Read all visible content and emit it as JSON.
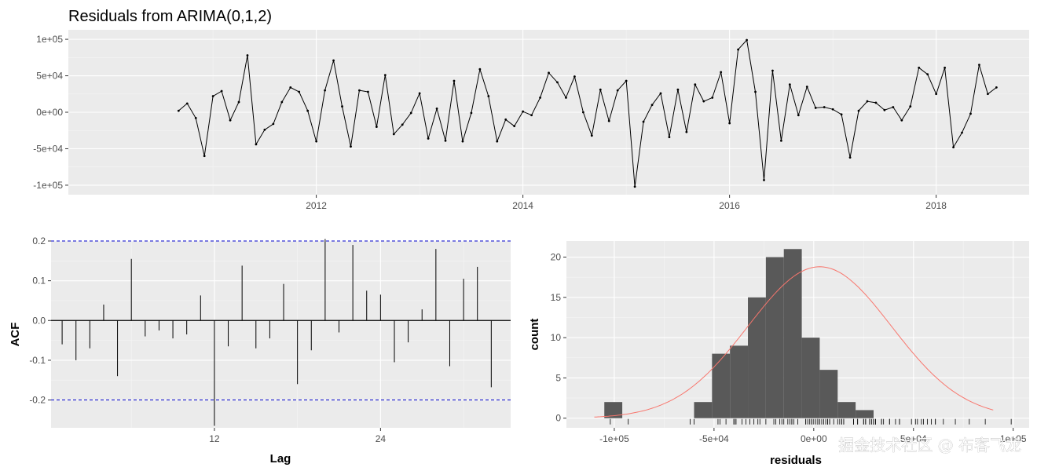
{
  "watermark": "掘金技术社区 @ 布客飞龙",
  "chart_data": [
    {
      "type": "line",
      "title": "Residuals from ARIMA(0,1,2)",
      "xlabel": "",
      "ylabel": "",
      "x_start": 2010.667,
      "x_step": 0.08333,
      "xlim": [
        2009.6,
        2018.9
      ],
      "ylim": [
        -113000,
        113000
      ],
      "x_ticks": [
        2012,
        2014,
        2016,
        2018
      ],
      "x_tick_labels": [
        "2012",
        "2014",
        "2016",
        "2018"
      ],
      "y_ticks": [
        -100000,
        -50000,
        0,
        50000,
        100000
      ],
      "y_tick_labels": [
        "-1e+05",
        "-5e+04",
        "0e+00",
        "5e+04",
        "1e+05"
      ],
      "line_color": "#000000",
      "values": [
        2000,
        12000,
        -8000,
        -60000,
        22000,
        29000,
        -11000,
        14000,
        78000,
        -44000,
        -24000,
        -16000,
        14000,
        34000,
        28000,
        2000,
        -40000,
        30000,
        71000,
        8000,
        -47000,
        30000,
        28000,
        -20000,
        51000,
        -30000,
        -17000,
        -1000,
        26000,
        -36000,
        5000,
        -39000,
        43000,
        -40000,
        -1000,
        59000,
        22000,
        -40000,
        -10000,
        -19000,
        1000,
        -4000,
        20000,
        54000,
        41000,
        20000,
        49000,
        0,
        -32000,
        31000,
        -12000,
        30000,
        43000,
        -102000,
        -13000,
        10000,
        26000,
        -34000,
        31000,
        -27000,
        38000,
        15000,
        20000,
        55000,
        -15000,
        86000,
        99000,
        28000,
        -93000,
        57000,
        -39000,
        38000,
        -4000,
        35000,
        6000,
        7000,
        4000,
        -3000,
        -62000,
        2000,
        15000,
        13000,
        3000,
        7000,
        -11000,
        8000,
        61000,
        52000,
        25000,
        61000,
        -48000,
        -28000,
        -2000,
        65000,
        25000,
        34000
      ]
    },
    {
      "type": "bar",
      "title": "",
      "xlabel": "Lag",
      "ylabel": "ACF",
      "xlim": [
        0.2,
        33.4
      ],
      "ylim": [
        -0.27,
        0.2
      ],
      "x_ticks": [
        12,
        24
      ],
      "x_tick_labels": [
        "12",
        "24"
      ],
      "y_ticks": [
        -0.2,
        -0.1,
        0,
        0.1,
        0.2
      ],
      "y_tick_labels": [
        "-0.2",
        "-0.1",
        "0.0",
        "0.1",
        "0.2"
      ],
      "ci_bounds": [
        -0.2,
        0.2
      ],
      "ci_color": "#0000cc",
      "lags": [
        1,
        2,
        3,
        4,
        5,
        6,
        7,
        8,
        9,
        10,
        11,
        12,
        13,
        14,
        15,
        16,
        17,
        18,
        19,
        20,
        21,
        22,
        23,
        24,
        25,
        26,
        27,
        28,
        29,
        30,
        31,
        32
      ],
      "values": [
        -0.06,
        -0.1,
        -0.07,
        0.04,
        -0.14,
        0.155,
        -0.04,
        -0.025,
        -0.045,
        -0.035,
        0.063,
        -0.265,
        -0.065,
        0.138,
        -0.07,
        -0.045,
        0.092,
        -0.16,
        -0.075,
        0.205,
        -0.03,
        0.19,
        0.075,
        0.065,
        -0.105,
        -0.055,
        0.028,
        0.18,
        -0.115,
        0.105,
        0.135,
        -0.168
      ]
    },
    {
      "type": "bar",
      "title": "",
      "xlabel": "residuals",
      "ylabel": "count",
      "xlim": [
        -124000,
        108000
      ],
      "ylim": [
        -1.2,
        22
      ],
      "x_ticks": [
        -100000,
        -50000,
        0,
        50000,
        100000
      ],
      "x_tick_labels": [
        "-1e+05",
        "-5e+04",
        "0e+00",
        "5e+04",
        "1e+05"
      ],
      "y_ticks": [
        0,
        5,
        10,
        15,
        20
      ],
      "y_tick_labels": [
        "0",
        "5",
        "10",
        "15",
        "20"
      ],
      "bin_width": 9000,
      "bin_starts": [
        -105000,
        -78000,
        -69000,
        -60000,
        -51000,
        -42000,
        -33000,
        -24000,
        -15000,
        -6000,
        3000,
        12000,
        21000,
        30000,
        39000,
        48000,
        57000,
        66000,
        75000,
        84000
      ],
      "counts": [
        2,
        0,
        0,
        2,
        8,
        9,
        15,
        20,
        21,
        10,
        6,
        2,
        1,
        0,
        0,
        0,
        0,
        0,
        0,
        0
      ],
      "bar_color": "#595959",
      "density_curve": {
        "color": "#f8766d",
        "mean": 3000,
        "sd": 36000,
        "peak_count": 18.8,
        "label": ""
      },
      "rug_color": "#000000"
    }
  ]
}
